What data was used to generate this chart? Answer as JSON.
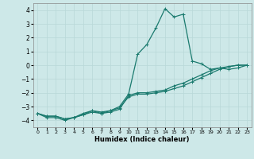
{
  "xlabel": "Humidex (Indice chaleur)",
  "ylabel": "",
  "background_color": "#cde8e8",
  "line_color": "#1a7a6e",
  "grid_color": "#b8d8d8",
  "xlim": [
    -0.5,
    23.5
  ],
  "ylim": [
    -4.5,
    4.5
  ],
  "xticks": [
    0,
    1,
    2,
    3,
    4,
    5,
    6,
    7,
    8,
    9,
    10,
    11,
    12,
    13,
    14,
    15,
    16,
    17,
    18,
    19,
    20,
    21,
    22,
    23
  ],
  "yticks": [
    -4,
    -3,
    -2,
    -1,
    0,
    1,
    2,
    3,
    4
  ],
  "series": [
    {
      "x": [
        0,
        1,
        2,
        3,
        4,
        5,
        6,
        7,
        8,
        9,
        10,
        11,
        12,
        13,
        14,
        15,
        16,
        17,
        18,
        19,
        20,
        21,
        22,
        23
      ],
      "y": [
        -3.5,
        -3.8,
        -3.8,
        -4.0,
        -3.8,
        -3.6,
        -3.3,
        -3.5,
        -3.3,
        -3.0,
        -2.1,
        0.8,
        1.5,
        2.7,
        4.1,
        3.5,
        3.7,
        0.3,
        0.1,
        -0.3,
        -0.2,
        -0.3,
        -0.2,
        0.0
      ]
    },
    {
      "x": [
        0,
        1,
        2,
        3,
        4,
        5,
        6,
        7,
        8,
        9,
        10,
        11,
        12,
        13,
        14,
        15,
        16,
        17,
        18,
        19,
        20,
        21,
        22,
        23
      ],
      "y": [
        -3.5,
        -3.7,
        -3.7,
        -3.9,
        -3.8,
        -3.6,
        -3.4,
        -3.5,
        -3.4,
        -3.2,
        -2.2,
        -2.0,
        -2.0,
        -1.9,
        -1.8,
        -1.5,
        -1.3,
        -1.0,
        -0.7,
        -0.4,
        -0.2,
        -0.1,
        0.0,
        0.0
      ]
    },
    {
      "x": [
        0,
        1,
        2,
        3,
        4,
        5,
        6,
        7,
        8,
        9,
        10,
        11,
        12,
        13,
        14,
        15,
        16,
        17,
        18,
        19,
        20,
        21,
        22,
        23
      ],
      "y": [
        -3.5,
        -3.7,
        -3.7,
        -3.9,
        -3.8,
        -3.5,
        -3.3,
        -3.4,
        -3.3,
        -3.1,
        -2.3,
        -2.1,
        -2.1,
        -2.0,
        -1.9,
        -1.7,
        -1.5,
        -1.2,
        -0.9,
        -0.6,
        -0.3,
        -0.1,
        0.0,
        0.0
      ]
    }
  ]
}
